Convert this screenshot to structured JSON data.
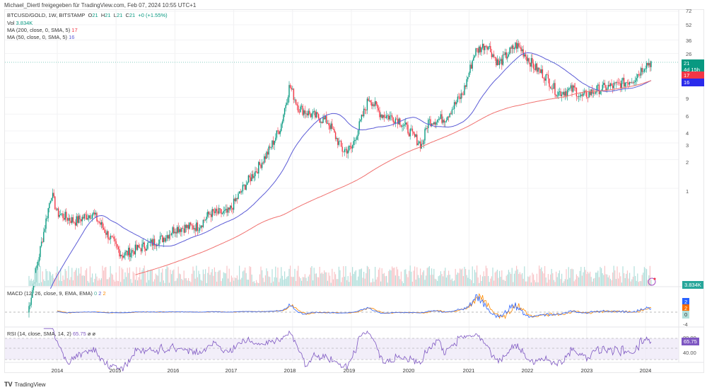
{
  "credit": "Michael_Diertl freigegeben für TradingView.com, Feb 07, 2024 10:55 UTC+1",
  "legend": {
    "symbol": "BTCUSD/GOLD, 1W, BITSTAMP",
    "o_label": "O",
    "o": "21",
    "h_label": "H",
    "h": "21",
    "l_label": "L",
    "l": "21",
    "c_label": "C",
    "c": "21",
    "change": "+0 (+1.55%)",
    "vol_label": "Vol",
    "vol": "3.834K",
    "ma200_label": "MA (200, close, 0, SMA, 5)",
    "ma200": "17",
    "ma50_label": "MA (50, close, 0, SMA, 5)",
    "ma50": "16"
  },
  "macd_legend": {
    "label": "MACD (12, 26, close, 9, EMA, EMA)",
    "hist": "0",
    "macd": "2",
    "signal": "2"
  },
  "rsi_legend": {
    "label": "RSI (14, close, SMA, 14, 2)",
    "rsi": "65.75",
    "v1": "ø",
    "v2": "ø"
  },
  "price_axis": [
    "72",
    "52",
    "36",
    "26",
    "9",
    "6",
    "4",
    "3",
    "2",
    "1"
  ],
  "tags": {
    "last": "21",
    "countdown": "4d 15h",
    "ma200": "17",
    "ma50": "16",
    "volume": "3.834K",
    "macd": "2",
    "signal": "2",
    "hist": "0",
    "macd_axis_low": "-4",
    "rsi": "65.75",
    "rsi_upper": "80.00",
    "rsi_lower": "40.00"
  },
  "x_axis": [
    "2014",
    "2015",
    "2016",
    "2017",
    "2018",
    "2019",
    "2020",
    "2021",
    "2022",
    "2023",
    "2024"
  ],
  "brand": "TradingView",
  "colors": {
    "up": "#089981",
    "down": "#f23645",
    "ma50": "#5b5bd6",
    "ma200": "#f0716f",
    "macd": "#2962ff",
    "signal": "#ff8a00",
    "rsi": "#7e57c2"
  },
  "chart_data": {
    "type": "candlestick",
    "title": "BTCUSD/GOLD, 1W, BITSTAMP",
    "scale": "log",
    "x": [
      "2013.5",
      "2013.9",
      "2014.0",
      "2014.3",
      "2014.6",
      "2014.9",
      "2015.1",
      "2015.5",
      "2015.8",
      "2016.0",
      "2016.4",
      "2016.6",
      "2016.9",
      "2017.2",
      "2017.4",
      "2017.6",
      "2017.8",
      "2017.95",
      "2018.1",
      "2018.3",
      "2018.6",
      "2018.85",
      "2019.0",
      "2019.3",
      "2019.5",
      "2019.8",
      "2020.2",
      "2020.3",
      "2020.6",
      "2020.9",
      "2021.1",
      "2021.3",
      "2021.5",
      "2021.8",
      "2021.9",
      "2022.1",
      "2022.3",
      "2022.5",
      "2022.8",
      "2022.9",
      "2023.2",
      "2023.5",
      "2023.8",
      "2024.0",
      "2024.1"
    ],
    "close": [
      0.05,
      0.9,
      0.55,
      0.45,
      0.55,
      0.3,
      0.2,
      0.25,
      0.3,
      0.38,
      0.4,
      0.55,
      0.55,
      1.1,
      1.6,
      2.5,
      4.5,
      12,
      7,
      6,
      5,
      2.5,
      2.6,
      9,
      6,
      5.3,
      2.8,
      5,
      5.5,
      10,
      27,
      33,
      20,
      32,
      28,
      19,
      15,
      10,
      11,
      9,
      11,
      12,
      14,
      20,
      21
    ],
    "ma50_end": 16,
    "ma200_end": 17,
    "last": 21,
    "change_pct": 1.55,
    "volume_last": "3.834K",
    "macd": {
      "macd": 2,
      "signal": 2,
      "hist": 0,
      "axis_low": -4
    },
    "rsi": {
      "value": 65.75,
      "upper": 80,
      "lower": 40
    },
    "y_ticks": [
      1,
      2,
      3,
      4,
      6,
      9,
      26,
      36,
      52,
      72
    ],
    "x_ticks": [
      "2014",
      "2015",
      "2016",
      "2017",
      "2018",
      "2019",
      "2020",
      "2021",
      "2022",
      "2023",
      "2024"
    ]
  }
}
